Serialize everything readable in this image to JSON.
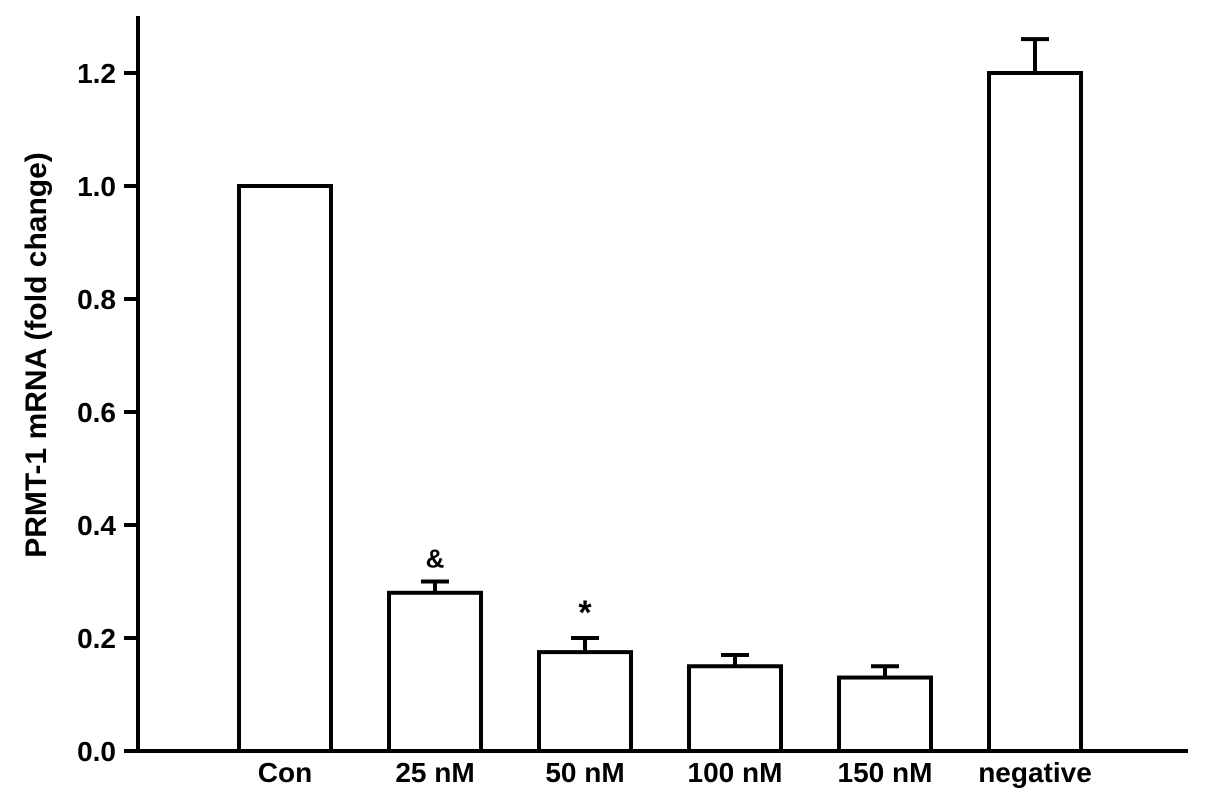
{
  "chart_data": {
    "type": "bar",
    "title": "",
    "xlabel": "",
    "ylabel": "PRMT-1 mRNA (fold change)",
    "ylim": [
      0,
      1.3
    ],
    "yticks": [
      0.0,
      0.2,
      0.4,
      0.6,
      0.8,
      1.0,
      1.2
    ],
    "ytick_labels": [
      "0.0",
      "0.2",
      "0.4",
      "0.6",
      "0.8",
      "1.0",
      "1.2"
    ],
    "categories": [
      "Con",
      "25 nM",
      "50 nM",
      "100 nM",
      "150 nM",
      "negative"
    ],
    "values": [
      1.0,
      0.28,
      0.175,
      0.15,
      0.13,
      1.2
    ],
    "errors": [
      0,
      0.02,
      0.025,
      0.02,
      0.02,
      0.06
    ],
    "annotations": [
      "",
      "&",
      "*",
      "",
      "",
      ""
    ],
    "grid": false,
    "legend": "none",
    "bar_fill": "#ffffff",
    "bar_stroke": "#000000"
  }
}
